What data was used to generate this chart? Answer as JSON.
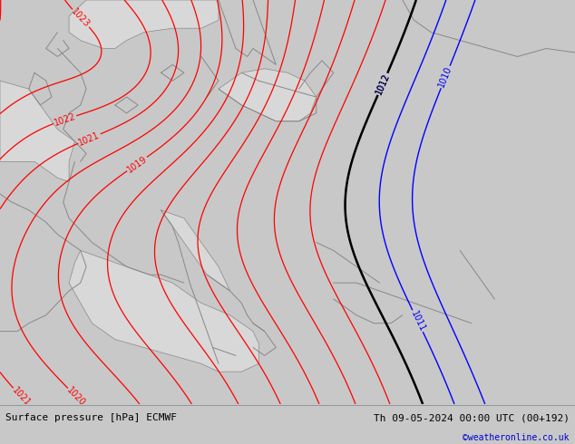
{
  "title_left": "Surface pressure [hPa] ECMWF",
  "title_right": "Th 09-05-2024 00:00 UTC (00+192)",
  "credit": "©weatheronline.co.uk",
  "bg_color": "#c8c8c8",
  "land_color": "#aade8a",
  "sea_color": "#d8d8d8",
  "figsize": [
    6.34,
    4.9
  ],
  "dpi": 100,
  "bottom_bar_color": "#c8c8c8",
  "label_fontsize": 7,
  "credit_color": "#0000cc",
  "isobar_red": "#ff0000",
  "isobar_black": "#000000",
  "isobar_blue": "#0000ff",
  "coast_color": "#888888"
}
